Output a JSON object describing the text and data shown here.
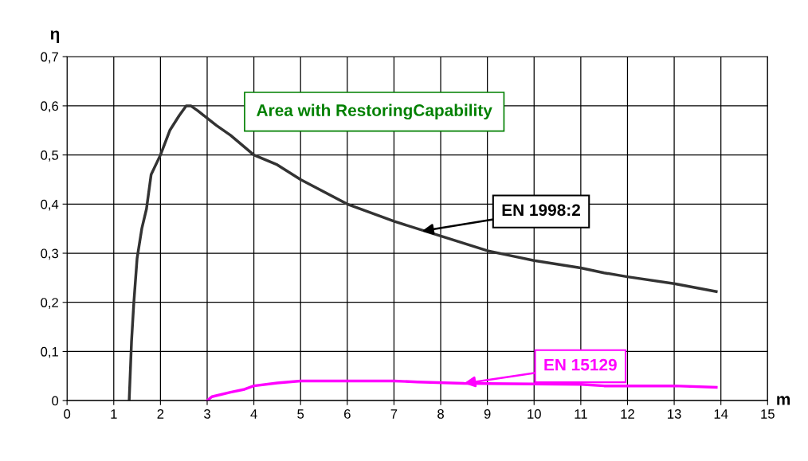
{
  "chart_data": {
    "type": "line",
    "xlabel": "m",
    "ylabel": "η",
    "series": [
      {
        "color": "#333333",
        "x": [
          1.33,
          1.38,
          1.43,
          1.5,
          1.6,
          1.7,
          1.8,
          2.0,
          2.2,
          2.4,
          2.55,
          2.65,
          2.8,
          3.0,
          3.2,
          3.5,
          4.0,
          4.5,
          5,
          6,
          7,
          8,
          8.5,
          9,
          9.5,
          10,
          11,
          11.5,
          12,
          13,
          13.9
        ],
        "values": [
          0,
          0.12,
          0.2,
          0.29,
          0.35,
          0.39,
          0.46,
          0.5,
          0.55,
          0.58,
          0.6,
          0.6,
          0.59,
          0.575,
          0.56,
          0.54,
          0.5,
          0.48,
          0.45,
          0.4,
          0.365,
          0.335,
          0.32,
          0.305,
          0.295,
          0.285,
          0.27,
          0.26,
          0.252,
          0.238,
          0.222
        ]
      },
      {
        "color": "#ff00ff",
        "x": [
          3,
          3.1,
          3.5,
          3.8,
          4,
          4.5,
          5,
          7,
          7.5,
          8.5,
          11,
          11.5,
          13,
          13.9
        ],
        "values": [
          0,
          0.008,
          0.017,
          0.023,
          0.03,
          0.036,
          0.04,
          0.04,
          0.038,
          0.035,
          0.033,
          0.03,
          0.03,
          0.027
        ]
      }
    ],
    "annotations": [
      "Area with RestoringCapability",
      {
        "text": "EN 1998:2",
        "x": 7.6,
        "y": 0.345
      },
      {
        "text": "EN 15129",
        "x": 8.5,
        "y": 0.035
      }
    ],
    "xlim": [
      0,
      15
    ],
    "xticks": [
      0,
      1,
      2,
      3,
      4,
      5,
      6,
      7,
      8,
      9,
      10,
      11,
      12,
      13,
      14,
      15
    ],
    "ylim": [
      0,
      0.7
    ],
    "yticks": [
      0,
      {
        "value": 0.1,
        "label": "0,1"
      },
      {
        "value": 0.2,
        "label": "0,2"
      },
      {
        "value": 0.3,
        "label": "0,3"
      },
      {
        "value": 0.4,
        "label": "0,4"
      },
      {
        "value": 0.5,
        "label": "0,5"
      },
      {
        "value": 0.6,
        "label": "0,6"
      },
      {
        "value": 0.7,
        "label": "0,7"
      }
    ],
    "grid": true,
    "marker": "none",
    "line_style": "solid"
  }
}
